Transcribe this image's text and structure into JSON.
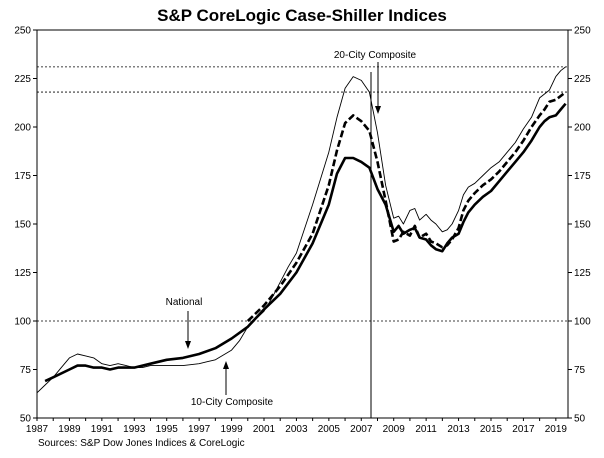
{
  "chart_data": {
    "type": "line",
    "title": "S&P CoreLogic Case-Shiller Indices",
    "source": "Sources:  S&P Dow Jones Indices & CoreLogic",
    "xlim": [
      1987.0,
      2019.75
    ],
    "ylim": [
      50,
      250
    ],
    "x_ticks": [
      "1987",
      "1989",
      "1991",
      "1993",
      "1995",
      "1997",
      "1999",
      "2001",
      "2003",
      "2005",
      "2007",
      "2009",
      "2011",
      "2013",
      "2015",
      "2017",
      "2019"
    ],
    "y_ticks": [
      "50",
      "75",
      "100",
      "125",
      "150",
      "175",
      "200",
      "225",
      "250"
    ],
    "reference_lines": [
      100,
      218,
      231
    ],
    "vertical_line": 2007.6,
    "annotations": {
      "twenty_city": "20-City Composite",
      "national": "National",
      "ten_city": "10-City Composite"
    },
    "series": [
      {
        "name": "10-City Composite",
        "style": "thin",
        "x": [
          1987.0,
          1987.5,
          1988.0,
          1988.5,
          1989.0,
          1989.5,
          1990.0,
          1990.5,
          1991.0,
          1991.5,
          1992.0,
          1992.5,
          1993.0,
          1993.5,
          1994.0,
          1995.0,
          1996.0,
          1997.0,
          1997.5,
          1998.0,
          1999.0,
          1999.5,
          2000.0,
          2001.0,
          2001.5,
          2002.0,
          2002.5,
          2003.0,
          2004.0,
          2005.0,
          2005.5,
          2006.0,
          2006.5,
          2007.0,
          2007.5,
          2008.0,
          2008.5,
          2009.0,
          2009.3,
          2009.6,
          2010.0,
          2010.3,
          2010.6,
          2011.0,
          2011.3,
          2011.6,
          2012.0,
          2012.3,
          2012.6,
          2013.0,
          2013.3,
          2013.6,
          2014.0,
          2014.5,
          2015.0,
          2015.5,
          2016.0,
          2016.5,
          2017.0,
          2017.5,
          2018.0,
          2018.3,
          2018.6,
          2019.0,
          2019.3,
          2019.6
        ],
        "values": [
          63,
          67,
          71,
          76,
          81,
          83,
          82,
          81,
          78,
          77,
          78,
          77,
          76,
          76,
          77,
          77,
          77,
          78,
          79,
          80,
          85,
          90,
          97,
          105,
          112,
          120,
          128,
          135,
          160,
          187,
          205,
          220,
          226,
          224,
          218,
          197,
          170,
          153,
          154,
          150,
          157,
          158,
          152,
          155,
          152,
          150,
          146,
          147,
          150,
          157,
          165,
          169,
          171,
          175,
          179,
          182,
          187,
          192,
          199,
          205,
          215,
          217,
          219,
          226,
          229,
          231
        ]
      },
      {
        "name": "20-City Composite",
        "style": "dashed",
        "x": [
          2000.0,
          2001.0,
          2002.0,
          2003.0,
          2004.0,
          2005.0,
          2005.5,
          2006.0,
          2006.5,
          2007.0,
          2007.5,
          2008.0,
          2008.5,
          2009.0,
          2009.3,
          2009.6,
          2010.0,
          2010.3,
          2010.6,
          2011.0,
          2011.3,
          2011.6,
          2012.0,
          2012.3,
          2012.6,
          2013.0,
          2013.3,
          2013.6,
          2014.0,
          2014.5,
          2015.0,
          2015.5,
          2016.0,
          2016.5,
          2017.0,
          2017.5,
          2018.0,
          2018.3,
          2018.6,
          2019.0,
          2019.3,
          2019.6
        ],
        "values": [
          100,
          108,
          118,
          130,
          145,
          170,
          188,
          202,
          206,
          203,
          198,
          182,
          162,
          141,
          142,
          146,
          144,
          149,
          143,
          145,
          141,
          140,
          138,
          139,
          142,
          148,
          157,
          162,
          166,
          170,
          173,
          177,
          182,
          187,
          193,
          200,
          206,
          209,
          213,
          214,
          216,
          218
        ]
      },
      {
        "name": "National",
        "style": "thick",
        "x": [
          1987.5,
          1988.0,
          1989.0,
          1989.5,
          1990.0,
          1990.5,
          1991.0,
          1991.5,
          1992.0,
          1992.5,
          1993.0,
          1993.5,
          1994.0,
          1995.0,
          1996.0,
          1997.0,
          1998.0,
          1999.0,
          2000.0,
          2001.0,
          2002.0,
          2003.0,
          2004.0,
          2005.0,
          2005.5,
          2006.0,
          2006.5,
          2007.0,
          2007.5,
          2008.0,
          2008.5,
          2009.0,
          2009.3,
          2009.6,
          2010.0,
          2010.3,
          2010.6,
          2011.0,
          2011.3,
          2011.6,
          2012.0,
          2012.3,
          2012.6,
          2013.0,
          2013.3,
          2013.6,
          2014.0,
          2014.5,
          2015.0,
          2015.5,
          2016.0,
          2016.5,
          2017.0,
          2017.5,
          2018.0,
          2018.3,
          2018.6,
          2019.0,
          2019.3,
          2019.6
        ],
        "values": [
          69,
          71,
          75,
          77,
          77,
          76,
          76,
          75,
          76,
          76,
          76,
          77,
          78,
          80,
          81,
          83,
          86,
          91,
          97,
          106,
          114,
          125,
          140,
          160,
          176,
          184,
          184,
          182,
          179,
          168,
          160,
          146,
          149,
          145,
          147,
          148,
          143,
          142,
          139,
          137,
          136,
          140,
          143,
          145,
          151,
          156,
          160,
          164,
          167,
          172,
          177,
          182,
          187,
          193,
          200,
          203,
          205,
          206,
          209,
          212
        ]
      }
    ]
  }
}
